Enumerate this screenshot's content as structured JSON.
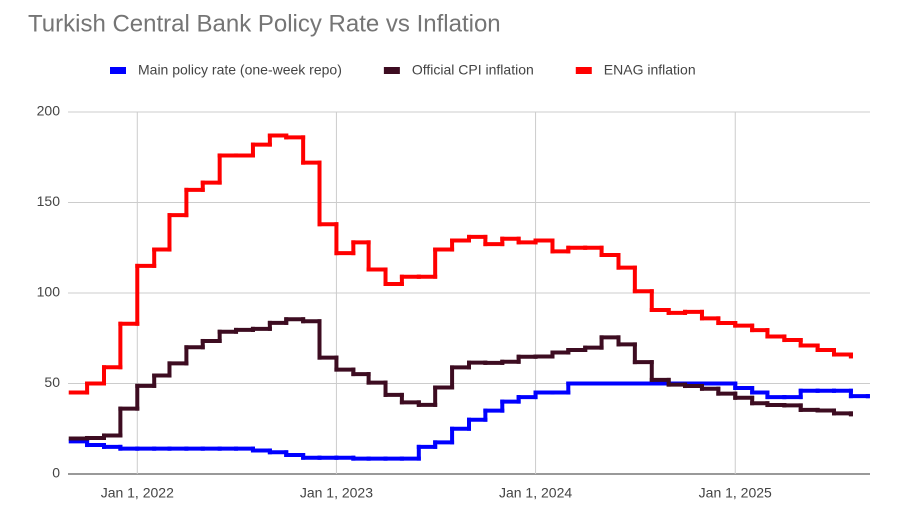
{
  "chart_data": {
    "type": "step-line",
    "title": "Turkish Central Bank Policy Rate vs Inflation",
    "x": [
      "2021-09-01",
      "2021-10-01",
      "2021-11-01",
      "2021-12-01",
      "2022-01-01",
      "2022-02-01",
      "2022-03-01",
      "2022-04-01",
      "2022-05-01",
      "2022-06-01",
      "2022-07-01",
      "2022-08-01",
      "2022-09-01",
      "2022-10-01",
      "2022-11-01",
      "2022-12-01",
      "2023-01-01",
      "2023-02-01",
      "2023-03-01",
      "2023-04-01",
      "2023-05-01",
      "2023-06-01",
      "2023-07-01",
      "2023-08-01",
      "2023-09-01",
      "2023-10-01",
      "2023-11-01",
      "2023-12-01",
      "2024-01-01",
      "2024-02-01",
      "2024-03-01",
      "2024-04-01",
      "2024-05-01",
      "2024-06-01",
      "2024-07-01",
      "2024-08-01",
      "2024-09-01",
      "2024-10-01",
      "2024-11-01",
      "2024-12-01",
      "2025-01-01",
      "2025-02-01",
      "2025-03-01",
      "2025-04-01",
      "2025-05-01",
      "2025-06-01",
      "2025-07-01",
      "2025-08-01",
      "2025-09-01"
    ],
    "series": [
      {
        "name": "Main policy rate (one-week repo)",
        "color": "#0000ff",
        "values": [
          18,
          16,
          15,
          14,
          14,
          14,
          14,
          14,
          14,
          14,
          14,
          13,
          12,
          10.5,
          9,
          9,
          9,
          8.5,
          8.5,
          8.5,
          8.5,
          15,
          17.5,
          25,
          30,
          35,
          40,
          42.5,
          45,
          45,
          50,
          50,
          50,
          50,
          50,
          50,
          50,
          50,
          50,
          50,
          47.5,
          45,
          42.5,
          42.5,
          46,
          46,
          46,
          43,
          43
        ]
      },
      {
        "name": "Official CPI inflation",
        "color": "#3d0c21",
        "values": [
          19.6,
          19.9,
          21.3,
          36.1,
          48.7,
          54.4,
          61.1,
          70,
          73.5,
          78.6,
          79.6,
          80.2,
          83.5,
          85.5,
          84.4,
          64.3,
          57.7,
          55.2,
          50.5,
          43.7,
          39.6,
          38.2,
          47.8,
          58.9,
          61.5,
          61.4,
          62,
          64.8,
          64.9,
          67.1,
          68.5,
          69.8,
          75.5,
          71.6,
          61.8,
          52,
          49.4,
          48.6,
          47.1,
          44.4,
          42.1,
          39.1,
          38.1,
          37.9,
          35.4,
          35.1,
          33.5,
          33,
          null
        ]
      },
      {
        "name": "ENAG inflation",
        "color": "#ff0000",
        "values": [
          45,
          50,
          59,
          83,
          115,
          124,
          143,
          157,
          161,
          176,
          176,
          182,
          187,
          186,
          172,
          138,
          122,
          128,
          113,
          105,
          109,
          109,
          124,
          129,
          131,
          127,
          130,
          128,
          129,
          123,
          125,
          125,
          121,
          114,
          101,
          90.6,
          89,
          89.6,
          86,
          83.4,
          82,
          79.5,
          76,
          74,
          71,
          68.5,
          66,
          65,
          null
        ]
      }
    ],
    "xlim": [
      "2021-08-27",
      "2025-09-05"
    ],
    "xticks": [
      {
        "value": "2022-01-01",
        "label": "Jan 1, 2022"
      },
      {
        "value": "2023-01-01",
        "label": "Jan 1, 2023"
      },
      {
        "value": "2024-01-01",
        "label": "Jan 1, 2024"
      },
      {
        "value": "2025-01-01",
        "label": "Jan 1, 2025"
      }
    ],
    "ylim": [
      0,
      200
    ],
    "yticks": [
      0,
      50,
      100,
      150,
      200
    ],
    "grid": true
  }
}
